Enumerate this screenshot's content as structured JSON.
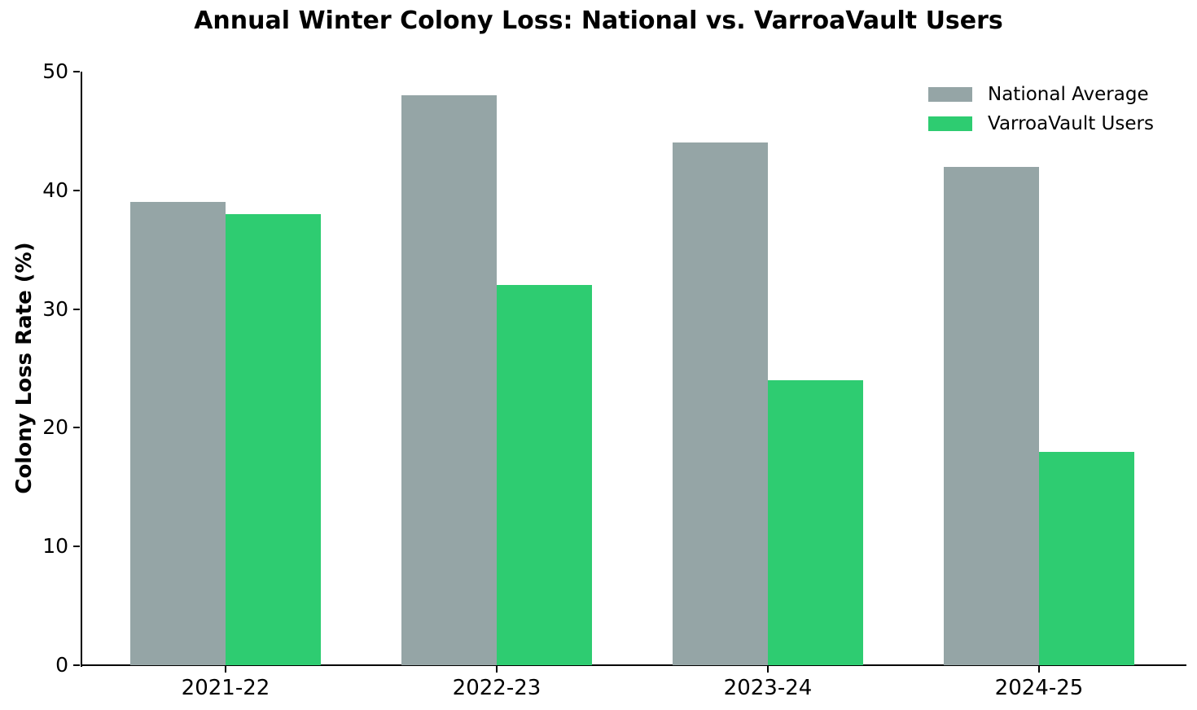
{
  "chart_data": {
    "type": "bar",
    "title": "Annual Winter Colony Loss: National vs. VarroaVault Users",
    "categories": [
      "2021-22",
      "2022-23",
      "2023-24",
      "2024-25"
    ],
    "series": [
      {
        "name": "National Average",
        "color": "#95a5a6",
        "values": [
          39,
          48,
          44,
          42
        ]
      },
      {
        "name": "VarroaVault Users",
        "color": "#2ecc71",
        "values": [
          38,
          32,
          24,
          18
        ]
      }
    ],
    "xlabel": "",
    "ylabel": "Colony Loss Rate (%)",
    "ylim": [
      0,
      50
    ],
    "yticks": [
      0,
      10,
      20,
      30,
      40,
      50
    ],
    "grid": false,
    "legend_position": "upper right",
    "axis_color": "#000000",
    "background_color": "#ffffff"
  }
}
